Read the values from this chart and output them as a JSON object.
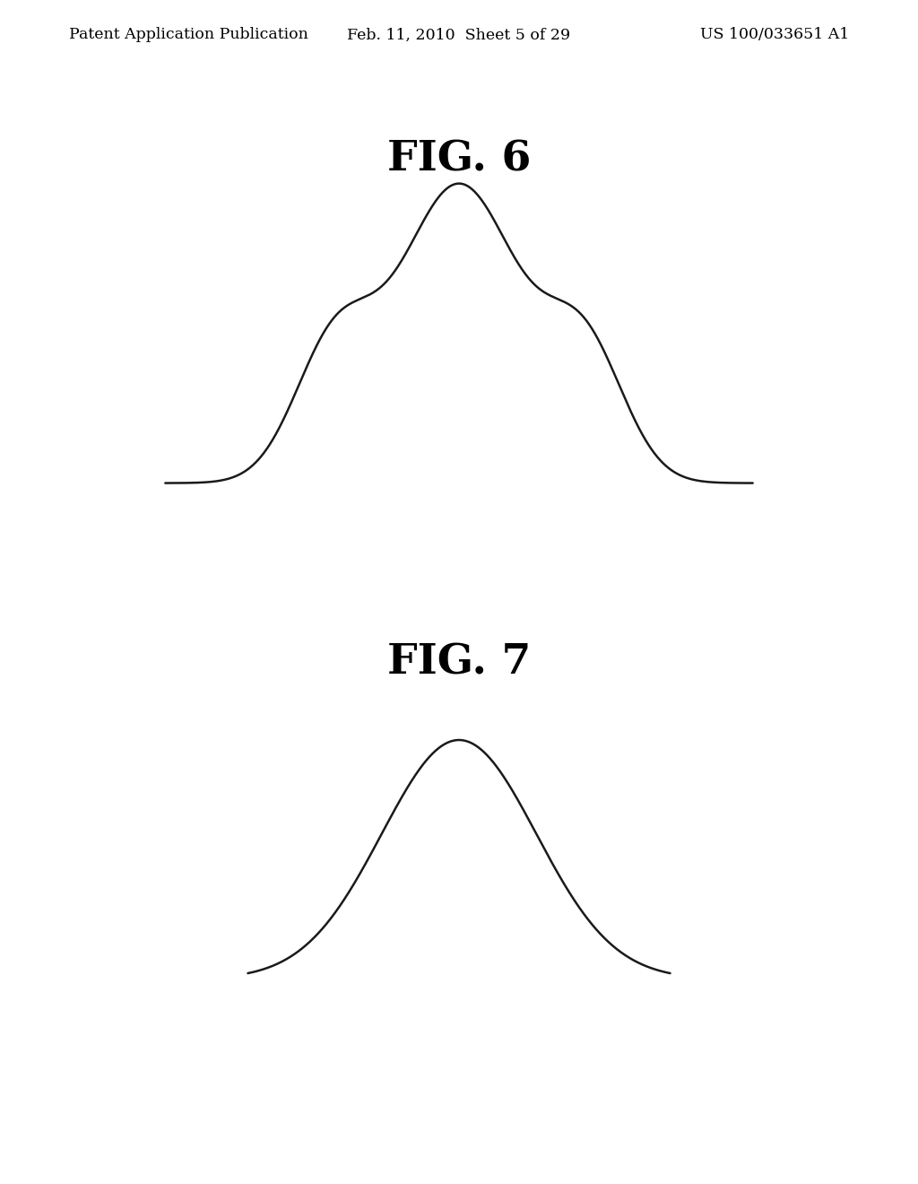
{
  "background_color": "#ffffff",
  "line_color": "#1a1a1a",
  "line_width": 1.8,
  "header_left": "Patent Application Publication",
  "header_center": "Feb. 11, 2010  Sheet 5 of 29",
  "header_right": "US 100/033651 A1",
  "fig6_label": "FIG. 6",
  "fig7_label": "FIG. 7",
  "label_fontsize": 34,
  "header_fontsize": 12.5
}
